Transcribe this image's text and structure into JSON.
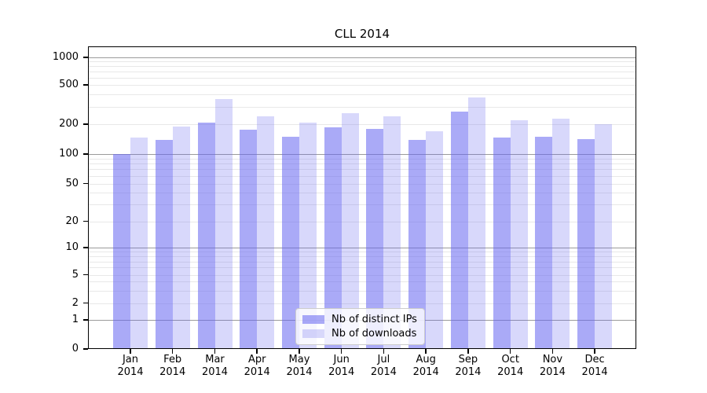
{
  "title": "CLL 2014",
  "chart_data": {
    "type": "bar",
    "title": "CLL 2014",
    "categories": [
      "Jan",
      "Feb",
      "Mar",
      "Apr",
      "May",
      "Jun",
      "Jul",
      "Aug",
      "Sep",
      "Oct",
      "Nov",
      "Dec"
    ],
    "category_year": "2014",
    "series": [
      {
        "name": "Nb of distinct IPs",
        "color": "#6464f0",
        "alpha": 0.55,
        "values": [
          100,
          138,
          207,
          176,
          150,
          186,
          180,
          139,
          268,
          145,
          148,
          142
        ]
      },
      {
        "name": "Nb of downloads",
        "color": "#6464f0",
        "alpha": 0.25,
        "values": [
          145,
          190,
          357,
          240,
          205,
          260,
          240,
          170,
          375,
          218,
          225,
          198
        ]
      }
    ],
    "yscale": "symlog",
    "yticks": [
      0,
      1,
      2,
      5,
      10,
      20,
      50,
      100,
      200,
      500,
      1000
    ],
    "ylim": [
      0,
      1300
    ],
    "grid": true,
    "legend": {
      "position": "lower-center-inside",
      "entries": [
        "Nb of distinct IPs",
        "Nb of downloads"
      ]
    }
  },
  "colors": {
    "background": "#ffffff",
    "bar_dark_rendered": "#a8a8f7",
    "bar_light_rendered": "#d8d8fa",
    "grid_major": "#9b9b9b",
    "grid_minor": "#e8e8e8",
    "axis": "#000000",
    "legend_border": "#cccccc"
  }
}
